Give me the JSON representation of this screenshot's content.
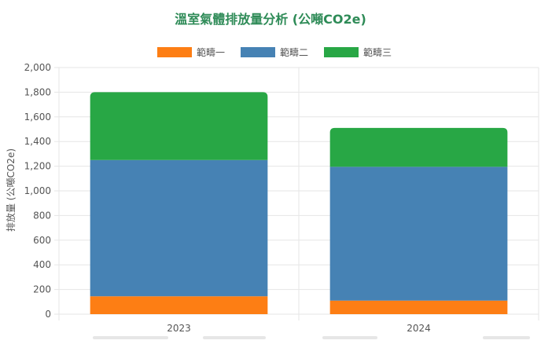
{
  "chart_data": {
    "type": "bar",
    "stacked": true,
    "title": "溫室氣體排放量分析 (公噸CO2e)",
    "ylabel": "排放量 (公噸CO2e)",
    "xlabel": "",
    "categories": [
      "2023",
      "2024"
    ],
    "series": [
      {
        "name": "範疇一",
        "color": "#fd7e14",
        "values": [
          145,
          110
        ]
      },
      {
        "name": "範疇二",
        "color": "#4682b4",
        "values": [
          1105,
          1085
        ]
      },
      {
        "name": "範疇三",
        "color": "#28a745",
        "values": [
          550,
          315
        ]
      }
    ],
    "ylim": [
      0,
      2000
    ],
    "yticks": [
      "0",
      "200",
      "400",
      "600",
      "800",
      "1,000",
      "1,200",
      "1,400",
      "1,600",
      "1,800",
      "2,000"
    ],
    "grid": true,
    "legend_position": "top",
    "colors": {
      "title": "#2e8b57",
      "axis_text": "#555555",
      "grid": "#e6e6e6"
    }
  }
}
